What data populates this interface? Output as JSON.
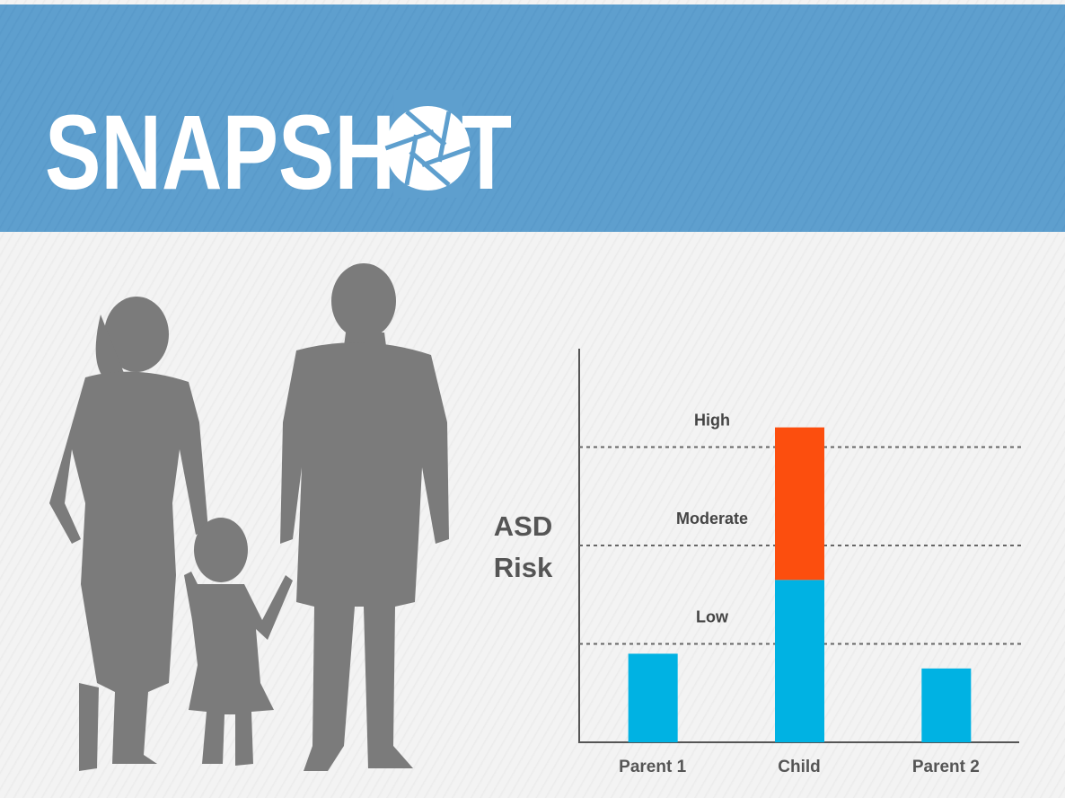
{
  "header": {
    "title": "SNAPSHOT"
  },
  "chart_data": {
    "type": "bar",
    "stacked": true,
    "ylabel": "ASD\nRisk",
    "categories": [
      "Parent 1",
      "Child",
      "Parent 2"
    ],
    "series": [
      {
        "color": "#00b2e3",
        "values": [
          0.9,
          1.65,
          0.75
        ]
      },
      {
        "color": "#fc4e0e",
        "values": [
          null,
          1.55,
          null
        ]
      }
    ],
    "ylim": [
      0,
      4
    ],
    "yticks": [
      {
        "value": 1,
        "label": "Low"
      },
      {
        "value": 2,
        "label": "Moderate"
      },
      {
        "value": 3,
        "label": "High"
      }
    ],
    "grid": true
  }
}
